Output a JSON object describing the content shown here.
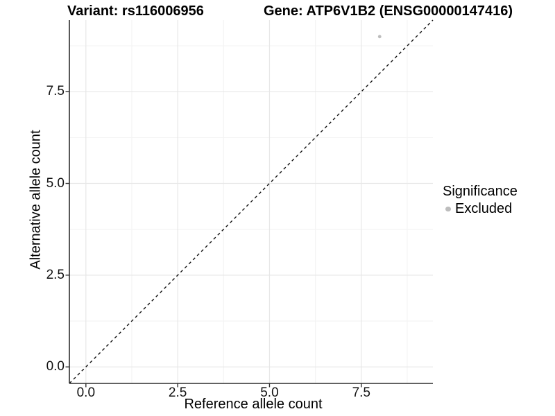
{
  "titles": {
    "variant": "Variant: rs116006956",
    "gene": "Gene: ATP6V1B2 (ENSG00000147416)"
  },
  "axes": {
    "x_label": "Reference allele count",
    "y_label": "Alternative allele count"
  },
  "legend": {
    "title": "Significance",
    "items": [
      {
        "label": "Excluded",
        "color": "#bdbdbd"
      }
    ]
  },
  "chart_data": {
    "type": "scatter",
    "title": "Variant: rs116006956 | Gene: ATP6V1B2 (ENSG00000147416)",
    "xlabel": "Reference allele count",
    "ylabel": "Alternative allele count",
    "xlim": [
      -0.45,
      9.45
    ],
    "ylim": [
      -0.45,
      9.45
    ],
    "x_ticks": [
      0.0,
      2.5,
      5.0,
      7.5
    ],
    "x_tick_labels": [
      "0.0",
      "2.5",
      "5.0",
      "7.5"
    ],
    "y_ticks": [
      0.0,
      2.5,
      5.0,
      7.5
    ],
    "y_tick_labels": [
      "0.0",
      "2.5",
      "5.0",
      "7.5"
    ],
    "x_minor_ticks": [
      1.25,
      3.75,
      6.25,
      8.75
    ],
    "y_minor_ticks": [
      1.25,
      3.75,
      6.25,
      8.75
    ],
    "grid": true,
    "legend_position": "right",
    "series": [
      {
        "name": "Excluded",
        "color": "#bdbdbd",
        "points": [
          [
            8,
            9
          ]
        ],
        "point_radius": 2.4
      }
    ],
    "reference_line": {
      "type": "identity",
      "slope": 1,
      "intercept": 0,
      "style": "dashed",
      "color": "#111111"
    },
    "style": {
      "grid_major_color": "#e7e7e7",
      "grid_minor_color": "#f3f3f3",
      "axis_line_color": "#2e2e2e",
      "tick_color": "#333333",
      "text_color": "#000000"
    }
  }
}
